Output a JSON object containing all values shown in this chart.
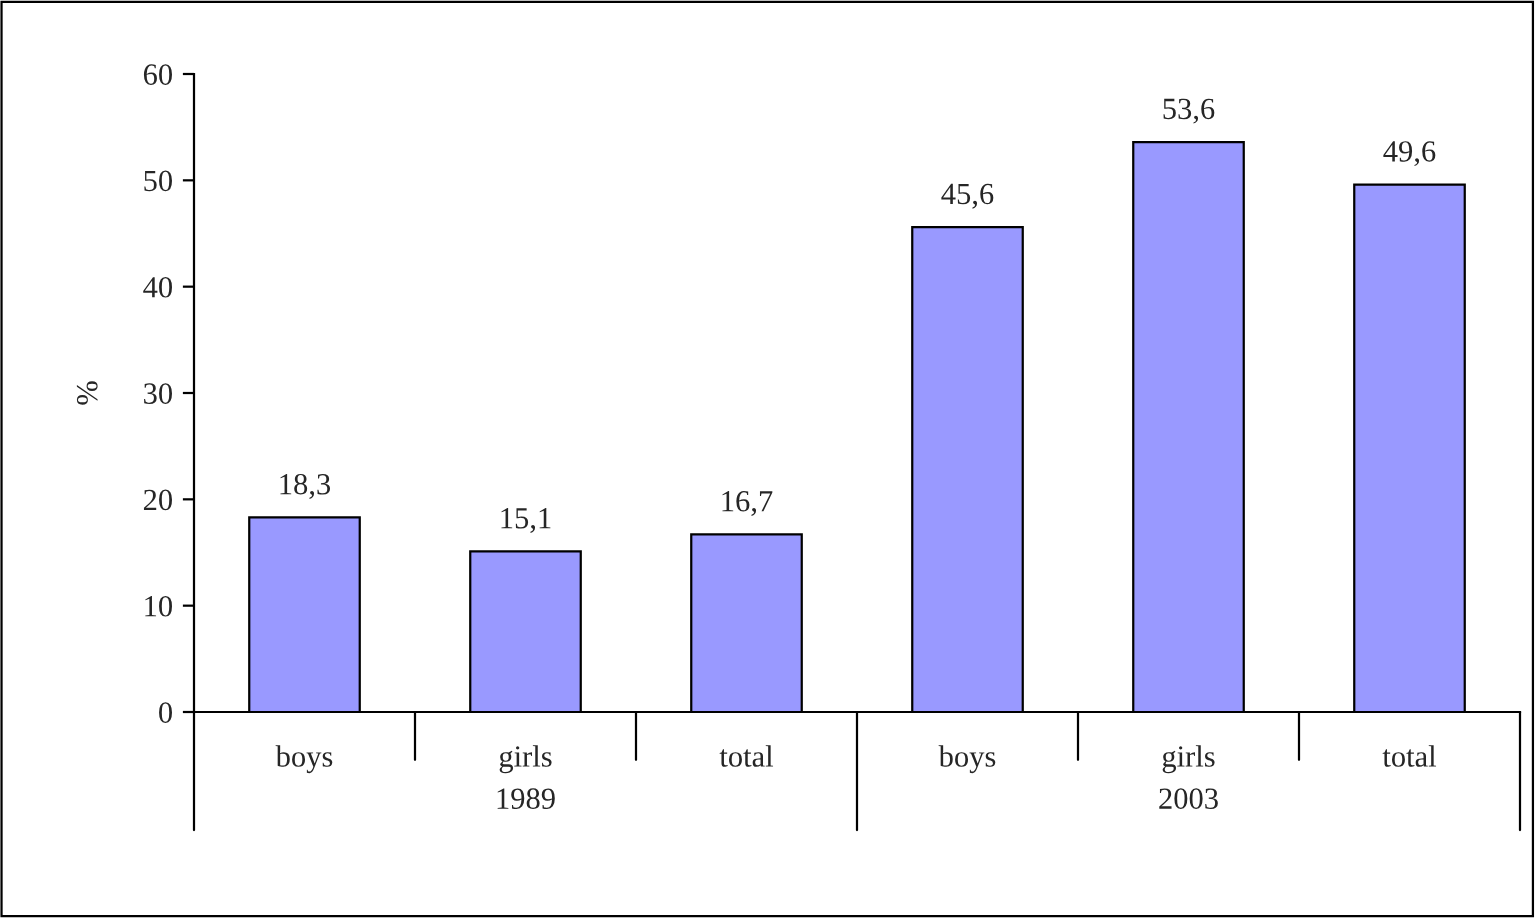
{
  "chart_data": {
    "type": "bar",
    "ylabel": "%",
    "categories": [
      "boys",
      "girls",
      "total",
      "boys",
      "girls",
      "total"
    ],
    "values": [
      18.3,
      15.1,
      16.7,
      45.6,
      53.6,
      49.6
    ],
    "value_labels": [
      "18,3",
      "15,1",
      "16,7",
      "45,6",
      "53,6",
      "49,6"
    ],
    "color": "#9999ff",
    "annotations": [
      "1989",
      "2003"
    ],
    "ylim": [
      0,
      60
    ],
    "yticks": [
      0,
      10,
      20,
      30,
      40,
      50,
      60
    ],
    "grid": false,
    "legend": false
  }
}
